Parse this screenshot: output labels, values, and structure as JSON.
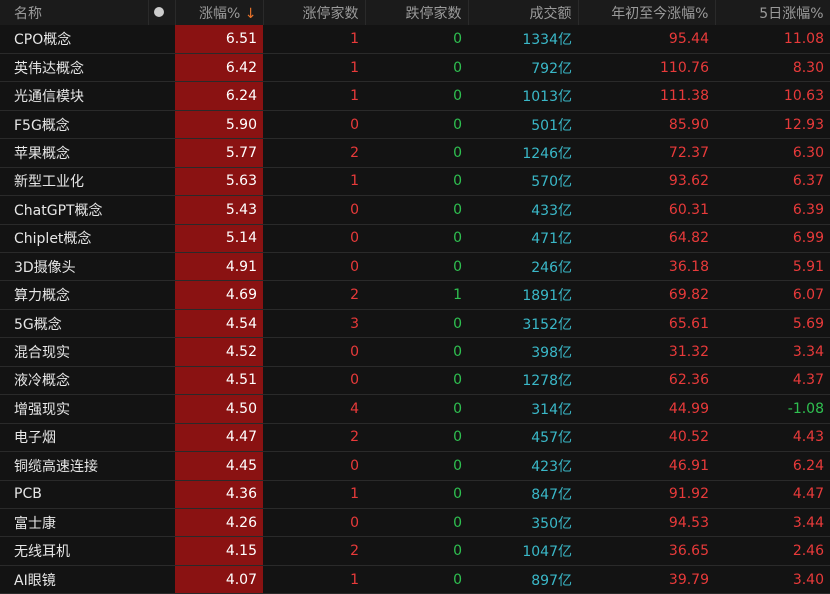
{
  "headers": {
    "name": "名称",
    "change": "涨幅%",
    "change_sort": "↓",
    "limit_up": "涨停家数",
    "limit_down": "跌停家数",
    "turnover": "成交额",
    "ytd": "年初至今涨幅%",
    "d5": "5日涨幅%"
  },
  "colors": {
    "up": "#e83a3a",
    "down": "#2fc050",
    "volume": "#3ab8c8",
    "highlight": "#8a1212"
  },
  "rows": [
    [
      "CPO概念",
      "6.51",
      "1",
      "0",
      "1334亿",
      "95.44",
      "11.08"
    ],
    [
      "英伟达概念",
      "6.42",
      "1",
      "0",
      "792亿",
      "110.76",
      "8.30"
    ],
    [
      "光通信模块",
      "6.24",
      "1",
      "0",
      "1013亿",
      "111.38",
      "10.63"
    ],
    [
      "F5G概念",
      "5.90",
      "0",
      "0",
      "501亿",
      "85.90",
      "12.93"
    ],
    [
      "苹果概念",
      "5.77",
      "2",
      "0",
      "1246亿",
      "72.37",
      "6.30"
    ],
    [
      "新型工业化",
      "5.63",
      "1",
      "0",
      "570亿",
      "93.62",
      "6.37"
    ],
    [
      "ChatGPT概念",
      "5.43",
      "0",
      "0",
      "433亿",
      "60.31",
      "6.39"
    ],
    [
      "Chiplet概念",
      "5.14",
      "0",
      "0",
      "471亿",
      "64.82",
      "6.99"
    ],
    [
      "3D摄像头",
      "4.91",
      "0",
      "0",
      "246亿",
      "36.18",
      "5.91"
    ],
    [
      "算力概念",
      "4.69",
      "2",
      "1",
      "1891亿",
      "69.82",
      "6.07"
    ],
    [
      "5G概念",
      "4.54",
      "3",
      "0",
      "3152亿",
      "65.61",
      "5.69"
    ],
    [
      "混合现实",
      "4.52",
      "0",
      "0",
      "398亿",
      "31.32",
      "3.34"
    ],
    [
      "液冷概念",
      "4.51",
      "0",
      "0",
      "1278亿",
      "62.36",
      "4.37"
    ],
    [
      "增强现实",
      "4.50",
      "4",
      "0",
      "314亿",
      "44.99",
      "-1.08"
    ],
    [
      "电子烟",
      "4.47",
      "2",
      "0",
      "457亿",
      "40.52",
      "4.43"
    ],
    [
      "铜缆高速连接",
      "4.45",
      "0",
      "0",
      "423亿",
      "46.91",
      "6.24"
    ],
    [
      "PCB",
      "4.36",
      "1",
      "0",
      "847亿",
      "91.92",
      "4.47"
    ],
    [
      "富士康",
      "4.26",
      "0",
      "0",
      "350亿",
      "94.53",
      "3.44"
    ],
    [
      "无线耳机",
      "4.15",
      "2",
      "0",
      "1047亿",
      "36.65",
      "2.46"
    ],
    [
      "AI眼镜",
      "4.07",
      "1",
      "0",
      "897亿",
      "39.79",
      "3.40"
    ]
  ]
}
